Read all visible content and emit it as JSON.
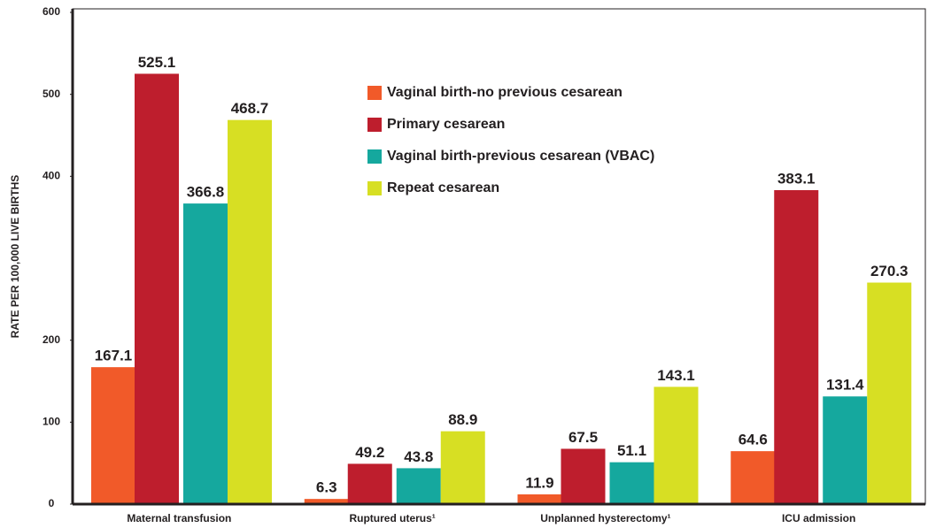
{
  "chart_data": {
    "type": "bar",
    "y_label": "RATE PER 100,000 LIVE BIRTHS",
    "categories": [
      "Maternal transfusion",
      "Ruptured uterus¹",
      "Unplanned hysterectomy¹",
      "ICU admission"
    ],
    "series": [
      {
        "name": "Vaginal birth-no previous cesarean",
        "color": "#f15a29",
        "values": [
          167.1,
          6.3,
          11.9,
          64.6
        ]
      },
      {
        "name": "Primary cesarean",
        "color": "#be1e2d",
        "values": [
          525.1,
          49.2,
          67.5,
          383.1
        ]
      },
      {
        "name": "Vaginal birth-previous cesarean (VBAC)",
        "color": "#15a89e",
        "values": [
          366.8,
          43.8,
          51.1,
          131.4
        ]
      },
      {
        "name": "Repeat cesarean",
        "color": "#d7df23",
        "values": [
          468.7,
          88.9,
          143.1,
          270.3
        ]
      }
    ],
    "ylim": [
      0,
      600
    ],
    "yticks": [
      0,
      100,
      200,
      400,
      500,
      600
    ],
    "grid": false,
    "legend": "top"
  }
}
